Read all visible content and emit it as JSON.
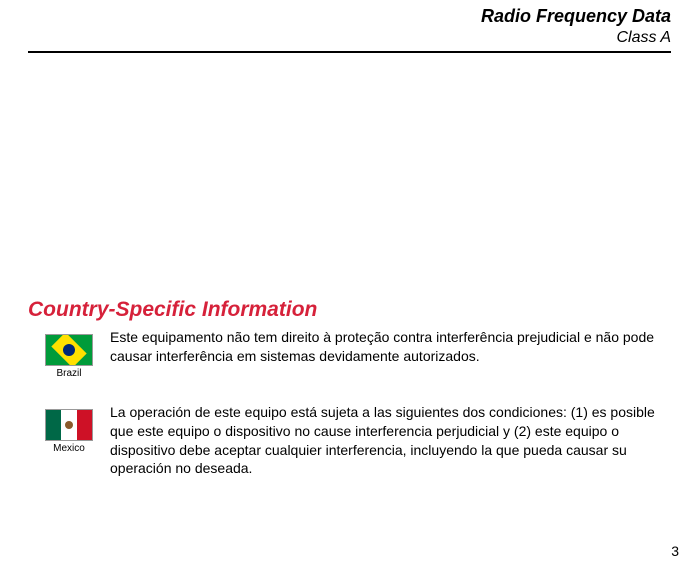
{
  "header": {
    "title": "Radio Frequency Data",
    "subtitle": "Class A"
  },
  "section": {
    "heading": "Country-Specific Information",
    "heading_color": "#d6213a"
  },
  "entries": [
    {
      "flag_label": "Brazil",
      "text": "Este equipamento não tem direito à proteção contra interferência prejudicial e não pode causar interferência em sistemas devidamente autorizados."
    },
    {
      "flag_label": "Mexico",
      "text": "La operación de este equipo está sujeta a las siguientes dos condiciones: (1) es posible que este equipo o dispositivo no cause interferencia perjudicial y (2) este equipo o dispositivo debe aceptar cualquier interferencia, incluyendo la que pueda causar su operación no deseada."
    }
  ],
  "page_number": "3"
}
